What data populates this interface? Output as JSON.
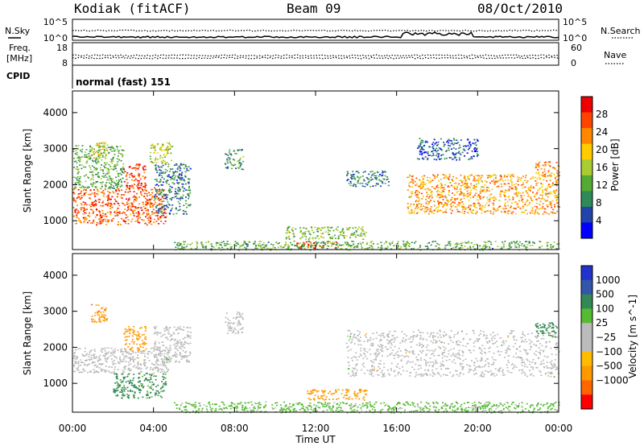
{
  "header": {
    "station": "Kodiak (fitACF)",
    "beam": "Beam 09",
    "date": "08/Oct/2010"
  },
  "noise_panel": {
    "left_label": "N.Sky",
    "right_label": "N.Search",
    "left_ticks": [
      "10^5",
      "10^0"
    ],
    "right_ticks": [
      "10^5",
      "10^0"
    ]
  },
  "freq_panel": {
    "left_label_1": "Freq.",
    "left_label_2": "[MHz]",
    "right_label": "Nave",
    "left_ticks": [
      "18",
      "8"
    ],
    "right_ticks": [
      "60",
      "0"
    ]
  },
  "cpid": {
    "label": "CPID",
    "value": "normal (fast) 151"
  },
  "x_axis": {
    "label": "Time UT",
    "ticks": [
      "00:00",
      "04:00",
      "08:00",
      "12:00",
      "16:00",
      "20:00",
      "00:00"
    ]
  },
  "colors": {
    "power_scale": [
      "#0000ff",
      "#2244aa",
      "#2e8b57",
      "#55aa33",
      "#aacc33",
      "#ffcc00",
      "#ff8800",
      "#ff4400",
      "#ee0000"
    ],
    "velocity_scale": [
      "#ff0000",
      "#ff6600",
      "#ff9900",
      "#ffbb00",
      "#bbbbbb",
      "#bbbbbb",
      "#55bb33",
      "#338855",
      "#3355aa",
      "#2233cc"
    ],
    "ground_scatter": "#bbbbbb"
  },
  "chart_data": [
    {
      "type": "heatmap",
      "name": "power",
      "ylabel": "Slant Range [km]",
      "y_ticks": [
        "1000",
        "2000",
        "3000",
        "4000"
      ],
      "ylim": [
        200,
        4600
      ],
      "xlim": [
        0,
        24
      ],
      "colorbar": {
        "label": "Power [dB]",
        "ticks": [
          "4",
          "8",
          "12",
          "16",
          "20",
          "24",
          "28"
        ],
        "range": [
          0,
          32
        ]
      },
      "regions": [
        {
          "x0": 0.0,
          "x1": 4.6,
          "y0": 900,
          "y1": 1900,
          "v": 26
        },
        {
          "x0": 0.0,
          "x1": 2.5,
          "y0": 1900,
          "y1": 3100,
          "v": 12
        },
        {
          "x0": 2.5,
          "x1": 3.6,
          "y0": 1900,
          "y1": 2600,
          "v": 28
        },
        {
          "x0": 0.9,
          "x1": 1.7,
          "y0": 2700,
          "y1": 3200,
          "v": 18
        },
        {
          "x0": 3.8,
          "x1": 4.9,
          "y0": 2600,
          "y1": 3200,
          "v": 16
        },
        {
          "x0": 4.0,
          "x1": 5.8,
          "y0": 1200,
          "y1": 2600,
          "v": 8
        },
        {
          "x0": 7.5,
          "x1": 8.4,
          "y0": 2400,
          "y1": 3000,
          "v": 10
        },
        {
          "x0": 10.5,
          "x1": 14.5,
          "y0": 500,
          "y1": 850,
          "v": 14
        },
        {
          "x0": 11.0,
          "x1": 13.0,
          "y0": 250,
          "y1": 450,
          "v": 28
        },
        {
          "x0": 13.5,
          "x1": 15.6,
          "y0": 1950,
          "y1": 2400,
          "v": 8
        },
        {
          "x0": 17.0,
          "x1": 20.0,
          "y0": 2700,
          "y1": 3300,
          "v": 6
        },
        {
          "x0": 16.5,
          "x1": 24.0,
          "y0": 1200,
          "y1": 2300,
          "v": 22
        },
        {
          "x0": 22.8,
          "x1": 24.0,
          "y0": 2250,
          "y1": 2650,
          "v": 24
        },
        {
          "x0": 5.0,
          "x1": 24.0,
          "y0": 200,
          "y1": 450,
          "v": 12
        }
      ]
    },
    {
      "type": "heatmap",
      "name": "velocity",
      "ylabel": "Slant Range [km]",
      "y_ticks": [
        "1000",
        "2000",
        "3000",
        "4000"
      ],
      "ylim": [
        200,
        4600
      ],
      "xlim": [
        0,
        24
      ],
      "colorbar": {
        "label": "Velocity [m s^-1]",
        "ticks": [
          "1000",
          "500",
          "100",
          "25",
          "−25",
          "−100",
          "−500",
          "−1000"
        ]
      },
      "regions": [
        {
          "x0": 0.0,
          "x1": 4.8,
          "y0": 1300,
          "y1": 2000,
          "v": 0,
          "gs": true
        },
        {
          "x0": 2.0,
          "x1": 4.6,
          "y0": 600,
          "y1": 1300,
          "v": 150
        },
        {
          "x0": 2.5,
          "x1": 3.6,
          "y0": 1900,
          "y1": 2600,
          "v": -300
        },
        {
          "x0": 0.9,
          "x1": 1.7,
          "y0": 2700,
          "y1": 3200,
          "v": -400
        },
        {
          "x0": 4.0,
          "x1": 5.8,
          "y0": 1600,
          "y1": 2600,
          "v": 0,
          "gs": true
        },
        {
          "x0": 7.5,
          "x1": 8.4,
          "y0": 2400,
          "y1": 3000,
          "v": 0,
          "gs": true
        },
        {
          "x0": 11.5,
          "x1": 14.5,
          "y0": 550,
          "y1": 850,
          "v": -200
        },
        {
          "x0": 13.5,
          "x1": 24.0,
          "y0": 1200,
          "y1": 2500,
          "v": 0,
          "gs": true
        },
        {
          "x0": 22.8,
          "x1": 24.0,
          "y0": 2300,
          "y1": 2700,
          "v": 300
        },
        {
          "x0": 5.0,
          "x1": 24.0,
          "y0": 200,
          "y1": 500,
          "v": 50
        }
      ]
    }
  ]
}
